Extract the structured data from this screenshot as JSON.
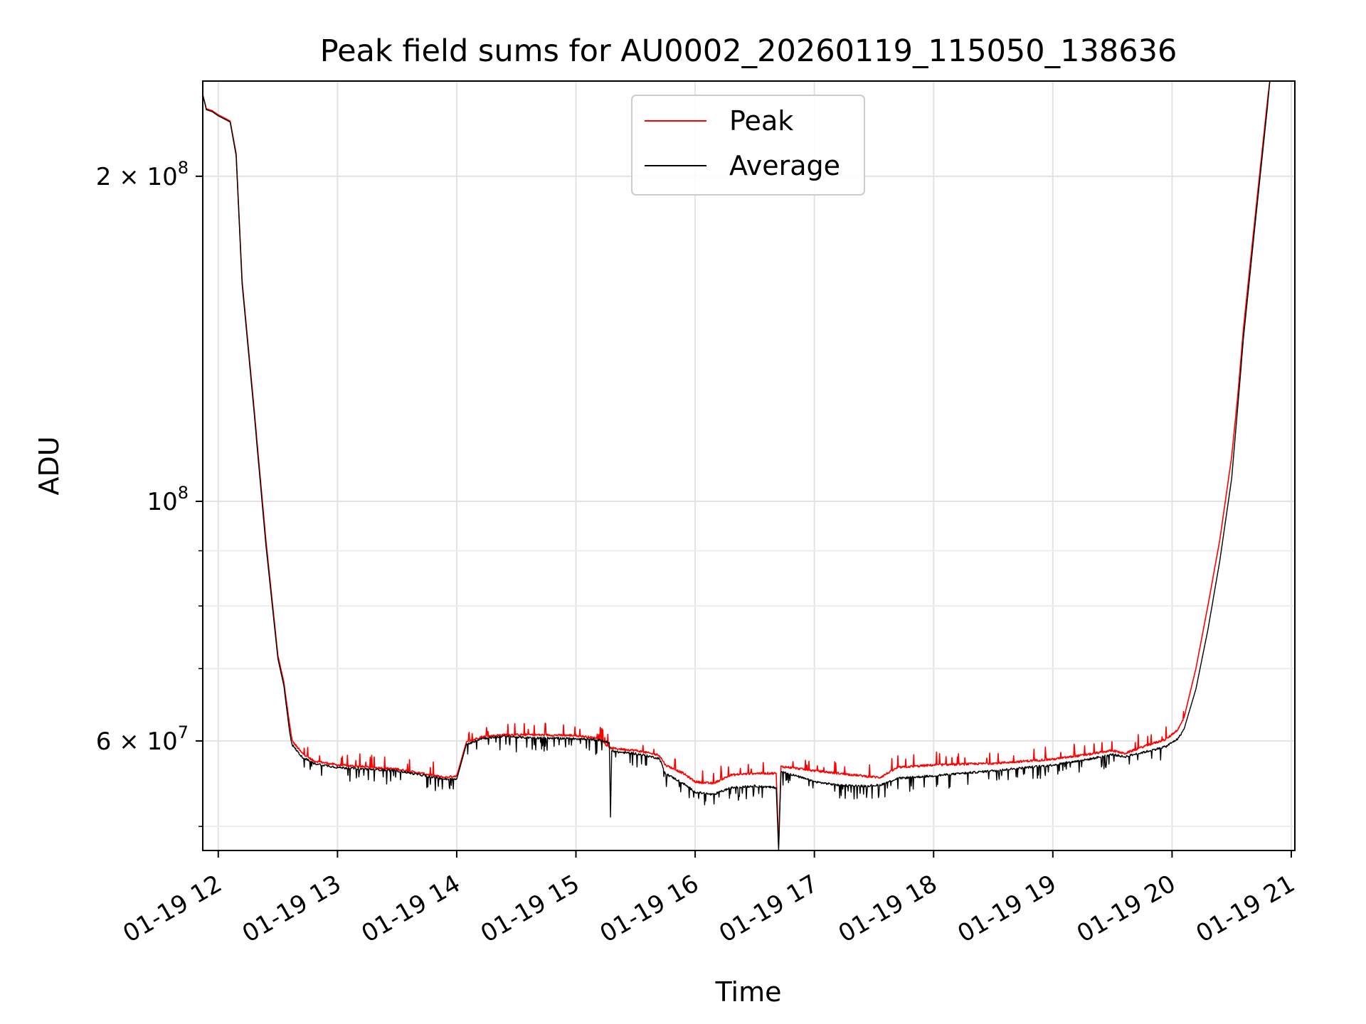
{
  "chart_data": {
    "type": "line",
    "title": "Peak field sums for AU0002_20260119_115050_138636",
    "xlabel": "Time",
    "ylabel": "ADU",
    "yscale": "log",
    "ylim": [
      47500000,
      245000000
    ],
    "xlim_hours": [
      11.87,
      21.03
    ],
    "grid": true,
    "legend_position": "top-center",
    "x_ticks": [
      {
        "value": 12,
        "label": "01-19 12"
      },
      {
        "value": 13,
        "label": "01-19 13"
      },
      {
        "value": 14,
        "label": "01-19 14"
      },
      {
        "value": 15,
        "label": "01-19 15"
      },
      {
        "value": 16,
        "label": "01-19 16"
      },
      {
        "value": 17,
        "label": "01-19 17"
      },
      {
        "value": 18,
        "label": "01-19 18"
      },
      {
        "value": 19,
        "label": "01-19 19"
      },
      {
        "value": 20,
        "label": "01-19 20"
      },
      {
        "value": 21,
        "label": "01-19 21"
      }
    ],
    "y_ticks": [
      {
        "value": 200000000,
        "base": "2 × 10",
        "exp": "8"
      },
      {
        "value": 100000000,
        "base": "10",
        "exp": "8"
      },
      {
        "value": 60000000,
        "base": "6 × 10",
        "exp": "7"
      }
    ],
    "y_minor_ticks": [
      50000000,
      70000000,
      80000000,
      90000000
    ],
    "series": [
      {
        "name": "Peak",
        "color": "#ff0000",
        "x": [
          11.87,
          11.9,
          11.95,
          12.0,
          12.05,
          12.1,
          12.15,
          12.2,
          12.3,
          12.4,
          12.5,
          12.55,
          12.6,
          12.62,
          12.7,
          12.8,
          13.0,
          13.5,
          13.9,
          14.0,
          14.08,
          14.2,
          14.4,
          14.6,
          15.0,
          15.2,
          15.28,
          15.35,
          15.5,
          15.7,
          15.75,
          15.9,
          16.0,
          16.15,
          16.3,
          16.5,
          16.68,
          16.7,
          16.72,
          16.8,
          17.0,
          17.2,
          17.4,
          17.55,
          17.7,
          18.0,
          18.5,
          19.0,
          19.3,
          19.5,
          19.6,
          19.8,
          19.95,
          20.05,
          20.1,
          20.2,
          20.3,
          20.4,
          20.5,
          20.55,
          20.6,
          20.7,
          20.8,
          20.82
        ],
        "y": [
          238000000,
          231000000,
          230000000,
          228000000,
          226500000,
          225000000,
          210000000,
          160000000,
          122000000,
          92000000,
          72000000,
          68000000,
          62000000,
          60000000,
          58500000,
          57500000,
          57000000,
          56500000,
          55500000,
          55700000,
          59800000,
          60500000,
          60800000,
          60800000,
          60700000,
          60300000,
          59100000,
          59000000,
          58800000,
          58200000,
          57000000,
          56000000,
          55000000,
          54800000,
          55800000,
          56000000,
          56000000,
          48000000,
          56800000,
          56700000,
          56300000,
          56000000,
          55700000,
          55500000,
          56700000,
          57000000,
          57200000,
          57700000,
          58300000,
          58800000,
          58400000,
          59500000,
          60200000,
          61500000,
          63000000,
          70000000,
          80000000,
          92000000,
          110000000,
          125000000,
          145000000,
          185000000,
          235000000,
          245000000
        ]
      },
      {
        "name": "Average",
        "color": "#000000",
        "x": [
          11.87,
          11.9,
          11.95,
          12.0,
          12.05,
          12.1,
          12.15,
          12.2,
          12.3,
          12.4,
          12.5,
          12.55,
          12.6,
          12.62,
          12.7,
          12.8,
          13.0,
          13.5,
          13.9,
          14.0,
          14.08,
          14.2,
          14.4,
          14.6,
          15.0,
          15.2,
          15.28,
          15.29,
          15.3,
          15.35,
          15.5,
          15.7,
          15.75,
          15.9,
          16.0,
          16.15,
          16.3,
          16.5,
          16.68,
          16.7,
          16.72,
          16.8,
          17.0,
          17.2,
          17.4,
          17.55,
          17.7,
          18.0,
          18.5,
          19.0,
          19.3,
          19.5,
          19.6,
          19.8,
          19.95,
          20.05,
          20.1,
          20.2,
          20.3,
          20.4,
          20.5,
          20.55,
          20.6,
          20.7,
          20.8,
          20.82
        ],
        "y": [
          238000000,
          230500000,
          229500000,
          227500000,
          226000000,
          224500000,
          209000000,
          159000000,
          121000000,
          91000000,
          71500000,
          67500000,
          61000000,
          59500000,
          58000000,
          57200000,
          56700000,
          56300000,
          55300000,
          55300000,
          59500000,
          60300000,
          60600000,
          60400000,
          60300000,
          60100000,
          59800000,
          51000000,
          58800000,
          58600000,
          58400000,
          57800000,
          56000000,
          54800000,
          53800000,
          53500000,
          54300000,
          54500000,
          54300000,
          47500000,
          56200000,
          55900000,
          55000000,
          54600000,
          54500000,
          54600000,
          55400000,
          55700000,
          56300000,
          57000000,
          57700000,
          58300000,
          58000000,
          58700000,
          59300000,
          60300000,
          61500000,
          67000000,
          76000000,
          88000000,
          105000000,
          122000000,
          142000000,
          182000000,
          232000000,
          245000000
        ]
      }
    ]
  }
}
